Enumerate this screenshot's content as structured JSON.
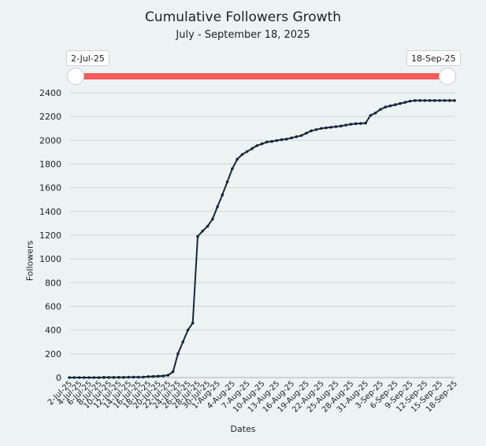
{
  "chart_data": {
    "type": "line",
    "title": "Cumulative Followers Growth",
    "subtitle": "July - September 18, 2025",
    "xlabel": "Dates",
    "ylabel": "Followers",
    "ylim": [
      0,
      2400
    ],
    "yticks": [
      0,
      200,
      400,
      600,
      800,
      1000,
      1200,
      1400,
      1600,
      1800,
      2000,
      2200,
      2400
    ],
    "grid": true,
    "legend": "none",
    "line_color": "#17263b",
    "range_selector": {
      "start_label": "2-Jul-25",
      "end_label": "18-Sep-25",
      "color": "#f45b5b"
    },
    "x_tick_labels": [
      "2-Jul-25",
      "4-Jul-25",
      "6-Jul-25",
      "8-Jul-25",
      "10-Jul-25",
      "12-Jul-25",
      "14-Jul-25",
      "16-Jul-25",
      "18-Jul-25",
      "20-Jul-25",
      "22-Jul-25",
      "24-Jul-25",
      "26-Jul-25",
      "28-Jul-25",
      "30-Jul-25",
      "1-Aug-25",
      "4-Aug-25",
      "7-Aug-25",
      "10-Aug-25",
      "13-Aug-25",
      "16-Aug-25",
      "19-Aug-25",
      "22-Aug-25",
      "25-Aug-25",
      "28-Aug-25",
      "31-Aug-25",
      "3-Sep-25",
      "6-Sep-25",
      "9-Sep-25",
      "12-Sep-25",
      "15-Sep-25",
      "18-Sep-25"
    ],
    "x": [
      "2-Jul-25",
      "3-Jul-25",
      "4-Jul-25",
      "5-Jul-25",
      "6-Jul-25",
      "7-Jul-25",
      "8-Jul-25",
      "9-Jul-25",
      "10-Jul-25",
      "11-Jul-25",
      "12-Jul-25",
      "13-Jul-25",
      "14-Jul-25",
      "15-Jul-25",
      "16-Jul-25",
      "17-Jul-25",
      "18-Jul-25",
      "19-Jul-25",
      "20-Jul-25",
      "21-Jul-25",
      "22-Jul-25",
      "23-Jul-25",
      "24-Jul-25",
      "25-Jul-25",
      "26-Jul-25",
      "27-Jul-25",
      "28-Jul-25",
      "29-Jul-25",
      "30-Jul-25",
      "31-Jul-25",
      "1-Aug-25",
      "2-Aug-25",
      "3-Aug-25",
      "4-Aug-25",
      "5-Aug-25",
      "6-Aug-25",
      "7-Aug-25",
      "8-Aug-25",
      "9-Aug-25",
      "10-Aug-25",
      "11-Aug-25",
      "12-Aug-25",
      "13-Aug-25",
      "14-Aug-25",
      "15-Aug-25",
      "16-Aug-25",
      "17-Aug-25",
      "18-Aug-25",
      "19-Aug-25",
      "20-Aug-25",
      "21-Aug-25",
      "22-Aug-25",
      "23-Aug-25",
      "24-Aug-25",
      "25-Aug-25",
      "26-Aug-25",
      "27-Aug-25",
      "28-Aug-25",
      "29-Aug-25",
      "30-Aug-25",
      "31-Aug-25",
      "1-Sep-25",
      "2-Sep-25",
      "3-Sep-25",
      "4-Sep-25",
      "5-Sep-25",
      "6-Sep-25",
      "7-Sep-25",
      "8-Sep-25",
      "9-Sep-25",
      "10-Sep-25",
      "11-Sep-25",
      "12-Sep-25",
      "13-Sep-25",
      "14-Sep-25",
      "15-Sep-25",
      "16-Sep-25",
      "17-Sep-25",
      "18-Sep-25"
    ],
    "series": [
      {
        "values": [
          0,
          0,
          0,
          0,
          0,
          0,
          0,
          1,
          1,
          1,
          2,
          2,
          3,
          3,
          3,
          4,
          8,
          10,
          12,
          14,
          20,
          50,
          200,
          300,
          400,
          460,
          1190,
          1235,
          1275,
          1335,
          1440,
          1540,
          1650,
          1760,
          1840,
          1880,
          1905,
          1930,
          1955,
          1970,
          1985,
          1990,
          1998,
          2005,
          2010,
          2020,
          2030,
          2040,
          2060,
          2080,
          2090,
          2100,
          2105,
          2110,
          2115,
          2120,
          2128,
          2135,
          2140,
          2142,
          2145,
          2210,
          2230,
          2260,
          2280,
          2290,
          2300,
          2310,
          2320,
          2330,
          2335,
          2335,
          2335,
          2335,
          2335,
          2335,
          2335,
          2335,
          2335
        ]
      }
    ]
  }
}
